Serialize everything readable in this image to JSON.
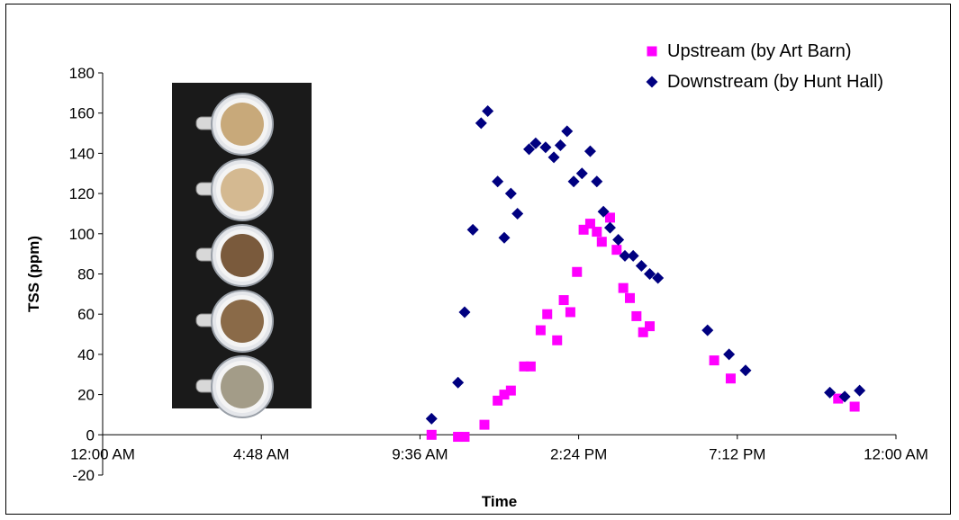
{
  "chart_data": {
    "type": "scatter",
    "title": "",
    "xlabel": "Time",
    "ylabel": "TSS (ppm)",
    "x_unit": "hours since 12:00 AM",
    "xlim": [
      0,
      24
    ],
    "ylim": [
      -20,
      180
    ],
    "x_ticks": [
      {
        "value": 0,
        "label": "12:00 AM"
      },
      {
        "value": 4.8,
        "label": "4:48 AM"
      },
      {
        "value": 9.6,
        "label": "9:36 AM"
      },
      {
        "value": 14.4,
        "label": "2:24 PM"
      },
      {
        "value": 19.2,
        "label": "7:12 PM"
      },
      {
        "value": 24,
        "label": "12:00 AM"
      }
    ],
    "y_ticks": [
      -20,
      0,
      20,
      40,
      60,
      80,
      100,
      120,
      140,
      160,
      180
    ],
    "grid": false,
    "legend_position": "top-right",
    "series": [
      {
        "name": "Upstream (by Art Barn)",
        "color": "#ff00ff",
        "marker": "square",
        "points": [
          [
            9.95,
            0
          ],
          [
            10.75,
            -1
          ],
          [
            10.95,
            -1
          ],
          [
            11.55,
            5
          ],
          [
            11.95,
            17
          ],
          [
            12.15,
            20
          ],
          [
            12.35,
            22
          ],
          [
            12.75,
            34
          ],
          [
            12.95,
            34
          ],
          [
            13.25,
            52
          ],
          [
            13.45,
            60
          ],
          [
            13.75,
            47
          ],
          [
            13.95,
            67
          ],
          [
            14.15,
            61
          ],
          [
            14.35,
            81
          ],
          [
            14.55,
            102
          ],
          [
            14.75,
            105
          ],
          [
            14.95,
            101
          ],
          [
            15.1,
            96
          ],
          [
            15.35,
            108
          ],
          [
            15.55,
            92
          ],
          [
            15.75,
            73
          ],
          [
            15.95,
            68
          ],
          [
            16.15,
            59
          ],
          [
            16.35,
            51
          ],
          [
            16.55,
            54
          ],
          [
            18.5,
            37
          ],
          [
            19.0,
            28
          ],
          [
            22.25,
            18
          ],
          [
            22.75,
            14
          ]
        ]
      },
      {
        "name": "Downstream (by Hunt Hall)",
        "color": "#000080",
        "marker": "diamond",
        "points": [
          [
            9.95,
            8
          ],
          [
            10.75,
            26
          ],
          [
            10.95,
            61
          ],
          [
            11.2,
            102
          ],
          [
            11.45,
            155
          ],
          [
            11.65,
            161
          ],
          [
            11.95,
            126
          ],
          [
            12.15,
            98
          ],
          [
            12.35,
            120
          ],
          [
            12.55,
            110
          ],
          [
            12.9,
            142
          ],
          [
            13.1,
            145
          ],
          [
            13.4,
            143
          ],
          [
            13.65,
            138
          ],
          [
            13.85,
            144
          ],
          [
            14.05,
            151
          ],
          [
            14.25,
            126
          ],
          [
            14.5,
            130
          ],
          [
            14.75,
            141
          ],
          [
            14.95,
            126
          ],
          [
            15.15,
            111
          ],
          [
            15.35,
            103
          ],
          [
            15.6,
            97
          ],
          [
            15.8,
            89
          ],
          [
            16.05,
            89
          ],
          [
            16.3,
            84
          ],
          [
            16.55,
            80
          ],
          [
            16.8,
            78
          ],
          [
            18.3,
            52
          ],
          [
            18.95,
            40
          ],
          [
            19.45,
            32
          ],
          [
            22.0,
            21
          ],
          [
            22.45,
            19
          ],
          [
            22.9,
            22
          ]
        ]
      }
    ]
  },
  "photo": {
    "description_icon": "filter-samples-photo",
    "background": "#1a1a1a",
    "sample_count": 5,
    "sample_colors": [
      "#c8a97a",
      "#d4b991",
      "#7a5a3c",
      "#8a6a48",
      "#a39c88"
    ]
  }
}
